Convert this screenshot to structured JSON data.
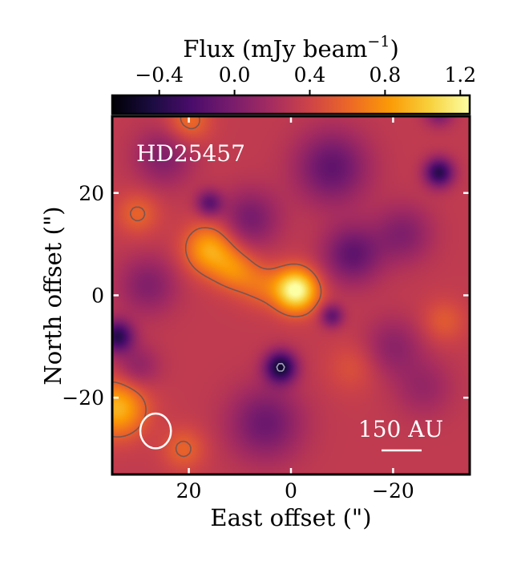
{
  "chart_data": {
    "type": "heatmap",
    "title": "",
    "colorbar": {
      "label_main": "Flux (mJy beam",
      "label_sup": "−1",
      "label_close": ")",
      "location": "top",
      "range": [
        -0.65,
        1.25
      ],
      "ticks": [
        -0.4,
        0.0,
        0.4,
        0.8,
        1.2
      ],
      "tick_labels": [
        "−0.4",
        "0.0",
        "0.4",
        "0.8",
        "1.2"
      ],
      "colormap": [
        "#000004",
        "#1b0c41",
        "#4a0c6b",
        "#781c6d",
        "#a52c60",
        "#cf4446",
        "#ed6925",
        "#fb9b06",
        "#f7d13d",
        "#fcffa4"
      ]
    },
    "xlabel": "East offset (\")",
    "ylabel": "North offset (\")",
    "xlim": [
      35,
      -35
    ],
    "ylim": [
      -35,
      35
    ],
    "xticks": [
      20,
      0,
      -20
    ],
    "xtick_labels": [
      "20",
      "0",
      "−20"
    ],
    "yticks": [
      20,
      0,
      -20
    ],
    "ytick_labels": [
      "20",
      "0",
      "−20"
    ],
    "target_label": "HD25457",
    "scalebar_label": "150 AU",
    "background_flux": 0.33,
    "sources": [
      {
        "x": -1,
        "y": 1,
        "peak": 0.95,
        "sigma": 3.0,
        "note": "central peak"
      },
      {
        "x": 16,
        "y": 9,
        "peak": 0.55,
        "sigma": 3.5
      },
      {
        "x": 11,
        "y": 5,
        "peak": 0.35,
        "sigma": 3.0
      },
      {
        "x": 6,
        "y": 2,
        "peak": 0.25,
        "sigma": 3.0
      },
      {
        "x": 34,
        "y": -22,
        "peak": 0.6,
        "sigma": 4.0
      },
      {
        "x": 30,
        "y": 16,
        "peak": 0.25,
        "sigma": 3.0
      },
      {
        "x": -30,
        "y": -5,
        "peak": 0.2,
        "sigma": 3.0
      },
      {
        "x": 20,
        "y": 34,
        "peak": 0.3,
        "sigma": 3.0
      },
      {
        "x": 21,
        "y": -30,
        "peak": 0.25,
        "sigma": 3.0
      },
      {
        "x": -12,
        "y": -14,
        "peak": 0.15,
        "sigma": 3.5
      },
      {
        "x": 2,
        "y": -14,
        "peak": -0.8,
        "sigma": 2.2,
        "note": "negative"
      },
      {
        "x": -29,
        "y": 24,
        "peak": -0.7,
        "sigma": 2.0,
        "note": "negative"
      },
      {
        "x": 34,
        "y": -8,
        "peak": -0.7,
        "sigma": 2.2,
        "note": "negative"
      },
      {
        "x": 16,
        "y": 18,
        "peak": -0.45,
        "sigma": 1.8,
        "note": "negative"
      },
      {
        "x": -8,
        "y": -4,
        "peak": -0.45,
        "sigma": 1.6,
        "note": "negative"
      },
      {
        "x": -29,
        "y": 36,
        "peak": -0.4,
        "sigma": 2.0,
        "note": "negative"
      },
      {
        "x": -8,
        "y": 25,
        "peak": -0.45,
        "sigma": 5.0
      },
      {
        "x": -12,
        "y": 8,
        "peak": -0.45,
        "sigma": 4.0
      },
      {
        "x": 8,
        "y": 15,
        "peak": -0.35,
        "sigma": 4.0
      },
      {
        "x": 5,
        "y": -25,
        "peak": -0.4,
        "sigma": 5.0
      },
      {
        "x": 28,
        "y": 2,
        "peak": -0.3,
        "sigma": 4.0
      },
      {
        "x": -22,
        "y": 12,
        "peak": -0.3,
        "sigma": 4.0
      },
      {
        "x": -20,
        "y": -10,
        "peak": -0.25,
        "sigma": 4.0
      },
      {
        "x": 30,
        "y": -14,
        "peak": -0.25,
        "sigma": 3.0
      },
      {
        "x": -26,
        "y": -18,
        "peak": -0.2,
        "sigma": 4.0
      },
      {
        "x": 25,
        "y": 27,
        "peak": -0.3,
        "sigma": 4.0
      }
    ],
    "contours": [
      {
        "level": 0.55,
        "style": "solid"
      },
      {
        "level": -0.45,
        "style": "dashed"
      }
    ],
    "beam": {
      "x": 26.5,
      "y": -26.5,
      "major_arcsec": 6.8,
      "minor_arcsec": 6.0,
      "color": "#ffffff"
    }
  }
}
